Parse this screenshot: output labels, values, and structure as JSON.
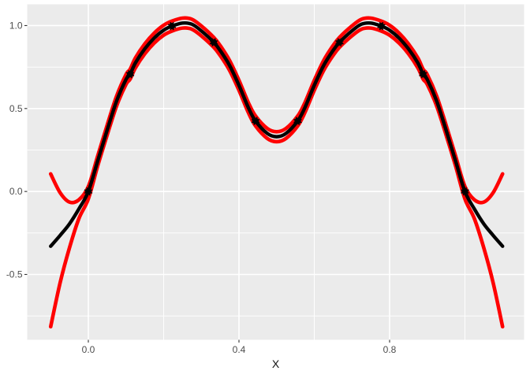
{
  "chart_data": {
    "type": "line",
    "title": "",
    "xlabel": "X",
    "ylabel": "",
    "x_domain": [
      -0.1623,
      1.1571
    ],
    "y_domain": [
      -0.894,
      1.128
    ],
    "grid": true,
    "legend": "none",
    "x_axis": {
      "major_ticks": [
        0.0,
        0.4,
        0.8
      ],
      "major_labels": [
        "0.0",
        "0.4",
        "0.8"
      ],
      "minor_ticks": [
        0.2,
        0.6,
        1.0
      ]
    },
    "y_axis": {
      "major_ticks": [
        -0.5,
        0.0,
        0.5,
        1.0
      ],
      "major_labels": [
        "-0.5",
        "0.0",
        "0.5",
        "1.0"
      ],
      "minor_ticks": [
        -0.75,
        -0.25,
        0.25,
        0.75
      ]
    },
    "points": {
      "name": "observations",
      "color": "#000000",
      "data": [
        [
          0.0,
          0.0
        ],
        [
          0.111,
          0.707
        ],
        [
          0.222,
          0.997
        ],
        [
          0.333,
          0.899
        ],
        [
          0.444,
          0.425
        ],
        [
          0.556,
          0.425
        ],
        [
          0.667,
          0.899
        ],
        [
          0.778,
          0.997
        ],
        [
          0.889,
          0.707
        ],
        [
          1.0,
          0.0
        ]
      ]
    },
    "series": [
      {
        "name": "band-lower-red",
        "color": "#FF0000",
        "stroke_width": 4.6,
        "data": [
          [
            -0.1,
            -0.815
          ],
          [
            -0.075,
            -0.551
          ],
          [
            -0.05,
            -0.339
          ],
          [
            -0.025,
            -0.163
          ],
          [
            0.0,
            -0.045
          ],
          [
            0.025,
            0.155
          ],
          [
            0.05,
            0.34
          ],
          [
            0.075,
            0.515
          ],
          [
            0.1,
            0.645
          ],
          [
            0.111,
            0.677
          ],
          [
            0.125,
            0.745
          ],
          [
            0.15,
            0.83
          ],
          [
            0.175,
            0.895
          ],
          [
            0.2,
            0.942
          ],
          [
            0.222,
            0.967
          ],
          [
            0.25,
            0.985
          ],
          [
            0.275,
            0.978
          ],
          [
            0.3,
            0.938
          ],
          [
            0.333,
            0.869
          ],
          [
            0.35,
            0.82
          ],
          [
            0.375,
            0.73
          ],
          [
            0.4,
            0.61
          ],
          [
            0.425,
            0.475
          ],
          [
            0.444,
            0.395
          ],
          [
            0.475,
            0.32
          ],
          [
            0.5,
            0.3
          ],
          [
            0.525,
            0.32
          ],
          [
            0.556,
            0.395
          ],
          [
            0.575,
            0.475
          ],
          [
            0.6,
            0.61
          ],
          [
            0.625,
            0.73
          ],
          [
            0.65,
            0.82
          ],
          [
            0.667,
            0.869
          ],
          [
            0.7,
            0.938
          ],
          [
            0.725,
            0.978
          ],
          [
            0.75,
            0.985
          ],
          [
            0.778,
            0.967
          ],
          [
            0.8,
            0.942
          ],
          [
            0.825,
            0.895
          ],
          [
            0.85,
            0.83
          ],
          [
            0.875,
            0.745
          ],
          [
            0.889,
            0.677
          ],
          [
            0.9,
            0.645
          ],
          [
            0.925,
            0.515
          ],
          [
            0.95,
            0.34
          ],
          [
            0.975,
            0.155
          ],
          [
            1.0,
            -0.045
          ],
          [
            1.025,
            -0.163
          ],
          [
            1.05,
            -0.339
          ],
          [
            1.075,
            -0.551
          ],
          [
            1.1,
            -0.815
          ]
        ]
      },
      {
        "name": "band-upper-red",
        "color": "#FF0000",
        "stroke_width": 4.6,
        "data": [
          [
            -0.1,
            0.106
          ],
          [
            -0.075,
            -0.007
          ],
          [
            -0.05,
            -0.064
          ],
          [
            -0.025,
            -0.05
          ],
          [
            0.0,
            0.03
          ],
          [
            0.025,
            0.215
          ],
          [
            0.05,
            0.4
          ],
          [
            0.075,
            0.575
          ],
          [
            0.1,
            0.705
          ],
          [
            0.111,
            0.737
          ],
          [
            0.125,
            0.805
          ],
          [
            0.15,
            0.89
          ],
          [
            0.175,
            0.955
          ],
          [
            0.2,
            1.002
          ],
          [
            0.222,
            1.027
          ],
          [
            0.25,
            1.045
          ],
          [
            0.275,
            1.038
          ],
          [
            0.3,
            0.998
          ],
          [
            0.333,
            0.929
          ],
          [
            0.35,
            0.88
          ],
          [
            0.375,
            0.79
          ],
          [
            0.4,
            0.67
          ],
          [
            0.425,
            0.535
          ],
          [
            0.444,
            0.455
          ],
          [
            0.475,
            0.38
          ],
          [
            0.5,
            0.36
          ],
          [
            0.525,
            0.38
          ],
          [
            0.556,
            0.455
          ],
          [
            0.575,
            0.535
          ],
          [
            0.6,
            0.67
          ],
          [
            0.625,
            0.79
          ],
          [
            0.65,
            0.88
          ],
          [
            0.667,
            0.929
          ],
          [
            0.7,
            0.998
          ],
          [
            0.725,
            1.038
          ],
          [
            0.75,
            1.045
          ],
          [
            0.778,
            1.027
          ],
          [
            0.8,
            1.002
          ],
          [
            0.825,
            0.955
          ],
          [
            0.85,
            0.89
          ],
          [
            0.875,
            0.805
          ],
          [
            0.889,
            0.737
          ],
          [
            0.9,
            0.705
          ],
          [
            0.925,
            0.575
          ],
          [
            0.95,
            0.4
          ],
          [
            0.975,
            0.215
          ],
          [
            1.0,
            0.03
          ],
          [
            1.025,
            -0.05
          ],
          [
            1.05,
            -0.064
          ],
          [
            1.075,
            -0.007
          ],
          [
            1.1,
            0.106
          ]
        ]
      },
      {
        "name": "fit-black",
        "color": "#000000",
        "stroke_width": 4.4,
        "data": [
          [
            -0.1,
            -0.33
          ],
          [
            -0.075,
            -0.265
          ],
          [
            -0.05,
            -0.195
          ],
          [
            -0.025,
            -0.105
          ],
          [
            0.0,
            0.0
          ],
          [
            0.025,
            0.185
          ],
          [
            0.05,
            0.37
          ],
          [
            0.075,
            0.545
          ],
          [
            0.1,
            0.675
          ],
          [
            0.111,
            0.707
          ],
          [
            0.125,
            0.775
          ],
          [
            0.15,
            0.86
          ],
          [
            0.175,
            0.925
          ],
          [
            0.2,
            0.972
          ],
          [
            0.222,
            0.997
          ],
          [
            0.25,
            1.015
          ],
          [
            0.275,
            1.008
          ],
          [
            0.3,
            0.968
          ],
          [
            0.333,
            0.899
          ],
          [
            0.35,
            0.85
          ],
          [
            0.375,
            0.76
          ],
          [
            0.4,
            0.64
          ],
          [
            0.425,
            0.505
          ],
          [
            0.444,
            0.425
          ],
          [
            0.475,
            0.35
          ],
          [
            0.5,
            0.33
          ],
          [
            0.525,
            0.35
          ],
          [
            0.556,
            0.425
          ],
          [
            0.575,
            0.505
          ],
          [
            0.6,
            0.64
          ],
          [
            0.625,
            0.76
          ],
          [
            0.65,
            0.85
          ],
          [
            0.667,
            0.899
          ],
          [
            0.7,
            0.968
          ],
          [
            0.725,
            1.008
          ],
          [
            0.75,
            1.015
          ],
          [
            0.778,
            0.997
          ],
          [
            0.8,
            0.972
          ],
          [
            0.825,
            0.925
          ],
          [
            0.85,
            0.86
          ],
          [
            0.875,
            0.775
          ],
          [
            0.889,
            0.707
          ],
          [
            0.9,
            0.675
          ],
          [
            0.925,
            0.545
          ],
          [
            0.95,
            0.37
          ],
          [
            0.975,
            0.185
          ],
          [
            1.0,
            0.0
          ],
          [
            1.025,
            -0.105
          ],
          [
            1.05,
            -0.195
          ],
          [
            1.075,
            -0.265
          ],
          [
            1.1,
            -0.33
          ]
        ]
      }
    ],
    "theme": {
      "panel_background": "#EBEBEB",
      "grid_color": "#FFFFFF",
      "tick_mark_color": "#333333",
      "tick_label_color": "#4D4D4D",
      "axis_title_color": "#111111",
      "outer_background": "#FFFFFF"
    }
  }
}
